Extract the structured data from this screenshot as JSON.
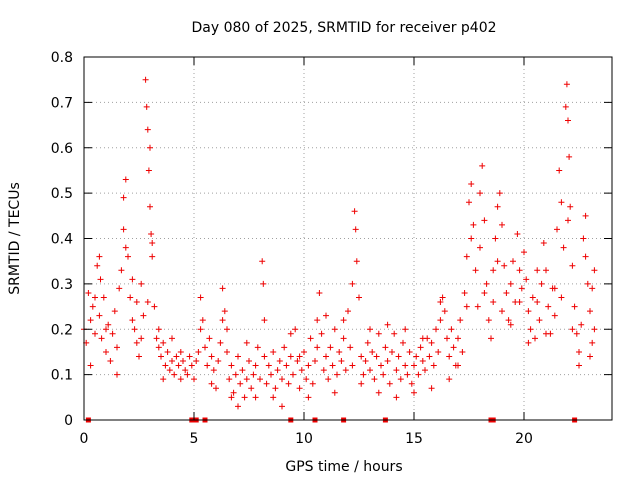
{
  "chart_data": {
    "type": "scatter",
    "title": "Day 080 of 2025, SRMTID for receiver p402",
    "xlabel": "GPS time / hours",
    "ylabel": "SRMTID / TECUs",
    "xlim": [
      0,
      24
    ],
    "ylim": [
      0,
      0.8
    ],
    "x_ticks": [
      0,
      5,
      10,
      15,
      20
    ],
    "x_tick_labels": [
      "0",
      "5",
      "10",
      "15",
      "20"
    ],
    "y_ticks": [
      0,
      0.1,
      0.2,
      0.3,
      0.4,
      0.5,
      0.6,
      0.7,
      0.8
    ],
    "y_tick_labels": [
      "0",
      "0.1",
      "0.2",
      "0.3",
      "0.4",
      "0.5",
      "0.6",
      "0.7",
      "0.8"
    ],
    "grid": true,
    "marker": "+",
    "color": "#ee0000",
    "zero_markers_x": [
      0.2,
      4.9,
      5.0,
      5.1,
      5.5,
      9.4,
      10.5,
      11.8,
      13.7,
      18.5,
      18.6,
      22.3
    ],
    "series": [
      {
        "name": "SRMTID",
        "points": [
          [
            0.0,
            0.2
          ],
          [
            0.1,
            0.17
          ],
          [
            0.2,
            0.28
          ],
          [
            0.3,
            0.22
          ],
          [
            0.4,
            0.25
          ],
          [
            0.5,
            0.19
          ],
          [
            0.6,
            0.34
          ],
          [
            0.7,
            0.23
          ],
          [
            0.8,
            0.18
          ],
          [
            0.9,
            0.27
          ],
          [
            1.0,
            0.15
          ],
          [
            1.1,
            0.21
          ],
          [
            1.2,
            0.13
          ],
          [
            1.3,
            0.19
          ],
          [
            1.4,
            0.24
          ],
          [
            1.5,
            0.16
          ],
          [
            1.6,
            0.29
          ],
          [
            1.7,
            0.33
          ],
          [
            1.8,
            0.49
          ],
          [
            1.9,
            0.53
          ],
          [
            2.0,
            0.36
          ],
          [
            2.1,
            0.27
          ],
          [
            2.2,
            0.31
          ],
          [
            2.3,
            0.2
          ],
          [
            2.4,
            0.26
          ],
          [
            2.5,
            0.14
          ],
          [
            2.6,
            0.18
          ],
          [
            2.7,
            0.23
          ],
          [
            2.8,
            0.75
          ],
          [
            2.85,
            0.69
          ],
          [
            2.9,
            0.64
          ],
          [
            2.95,
            0.55
          ],
          [
            3.0,
            0.47
          ],
          [
            3.05,
            0.41
          ],
          [
            3.1,
            0.36
          ],
          [
            3.2,
            0.25
          ],
          [
            3.3,
            0.18
          ],
          [
            3.4,
            0.16
          ],
          [
            3.5,
            0.14
          ],
          [
            3.6,
            0.17
          ],
          [
            3.7,
            0.12
          ],
          [
            3.8,
            0.15
          ],
          [
            3.9,
            0.11
          ],
          [
            4.0,
            0.13
          ],
          [
            4.1,
            0.1
          ],
          [
            4.2,
            0.14
          ],
          [
            4.3,
            0.12
          ],
          [
            4.4,
            0.09
          ],
          [
            4.5,
            0.13
          ],
          [
            4.6,
            0.11
          ],
          [
            4.7,
            0.1
          ],
          [
            4.8,
            0.14
          ],
          [
            4.9,
            0.12
          ],
          [
            5.0,
            0.09
          ],
          [
            5.1,
            0.13
          ],
          [
            5.2,
            0.15
          ],
          [
            5.3,
            0.27
          ],
          [
            5.4,
            0.22
          ],
          [
            5.5,
            0.16
          ],
          [
            5.6,
            0.12
          ],
          [
            5.7,
            0.18
          ],
          [
            5.8,
            0.08
          ],
          [
            5.9,
            0.11
          ],
          [
            6.0,
            0.07
          ],
          [
            6.1,
            0.13
          ],
          [
            6.2,
            0.17
          ],
          [
            6.3,
            0.29
          ],
          [
            6.4,
            0.24
          ],
          [
            6.5,
            0.15
          ],
          [
            6.6,
            0.09
          ],
          [
            6.7,
            0.12
          ],
          [
            6.8,
            0.06
          ],
          [
            6.9,
            0.1
          ],
          [
            7.0,
            0.14
          ],
          [
            7.1,
            0.08
          ],
          [
            7.2,
            0.11
          ],
          [
            7.3,
            0.05
          ],
          [
            7.4,
            0.09
          ],
          [
            7.5,
            0.13
          ],
          [
            7.6,
            0.07
          ],
          [
            7.7,
            0.1
          ],
          [
            7.8,
            0.12
          ],
          [
            7.9,
            0.16
          ],
          [
            8.0,
            0.09
          ],
          [
            8.1,
            0.35
          ],
          [
            8.15,
            0.3
          ],
          [
            8.2,
            0.14
          ],
          [
            8.3,
            0.08
          ],
          [
            8.4,
            0.12
          ],
          [
            8.5,
            0.1
          ],
          [
            8.6,
            0.15
          ],
          [
            8.7,
            0.07
          ],
          [
            8.8,
            0.11
          ],
          [
            8.9,
            0.13
          ],
          [
            9.0,
            0.09
          ],
          [
            9.1,
            0.16
          ],
          [
            9.2,
            0.12
          ],
          [
            9.3,
            0.08
          ],
          [
            9.4,
            0.14
          ],
          [
            9.5,
            0.1
          ],
          [
            9.6,
            0.2
          ],
          [
            9.7,
            0.13
          ],
          [
            9.8,
            0.07
          ],
          [
            9.9,
            0.11
          ],
          [
            10.0,
            0.15
          ],
          [
            10.1,
            0.09
          ],
          [
            10.2,
            0.12
          ],
          [
            10.3,
            0.18
          ],
          [
            10.4,
            0.08
          ],
          [
            10.5,
            0.13
          ],
          [
            10.6,
            0.22
          ],
          [
            10.7,
            0.28
          ],
          [
            10.8,
            0.19
          ],
          [
            10.9,
            0.11
          ],
          [
            11.0,
            0.14
          ],
          [
            11.1,
            0.09
          ],
          [
            11.2,
            0.16
          ],
          [
            11.3,
            0.12
          ],
          [
            11.4,
            0.2
          ],
          [
            11.5,
            0.1
          ],
          [
            11.6,
            0.15
          ],
          [
            11.7,
            0.13
          ],
          [
            11.8,
            0.18
          ],
          [
            11.9,
            0.11
          ],
          [
            12.0,
            0.24
          ],
          [
            12.1,
            0.16
          ],
          [
            12.2,
            0.12
          ],
          [
            12.3,
            0.46
          ],
          [
            12.35,
            0.42
          ],
          [
            12.4,
            0.35
          ],
          [
            12.5,
            0.27
          ],
          [
            12.6,
            0.14
          ],
          [
            12.7,
            0.1
          ],
          [
            12.8,
            0.13
          ],
          [
            12.9,
            0.17
          ],
          [
            13.0,
            0.11
          ],
          [
            13.1,
            0.15
          ],
          [
            13.2,
            0.09
          ],
          [
            13.3,
            0.14
          ],
          [
            13.4,
            0.19
          ],
          [
            13.5,
            0.12
          ],
          [
            13.6,
            0.1
          ],
          [
            13.7,
            0.16
          ],
          [
            13.8,
            0.13
          ],
          [
            13.9,
            0.08
          ],
          [
            14.0,
            0.15
          ],
          [
            14.1,
            0.19
          ],
          [
            14.2,
            0.11
          ],
          [
            14.3,
            0.14
          ],
          [
            14.4,
            0.09
          ],
          [
            14.5,
            0.17
          ],
          [
            14.6,
            0.12
          ],
          [
            14.7,
            0.1
          ],
          [
            14.8,
            0.15
          ],
          [
            14.9,
            0.08
          ],
          [
            15.0,
            0.12
          ],
          [
            15.1,
            0.14
          ],
          [
            15.2,
            0.1
          ],
          [
            15.3,
            0.16
          ],
          [
            15.4,
            0.13
          ],
          [
            15.5,
            0.11
          ],
          [
            15.6,
            0.18
          ],
          [
            15.7,
            0.14
          ],
          [
            15.8,
            0.17
          ],
          [
            15.9,
            0.12
          ],
          [
            16.0,
            0.2
          ],
          [
            16.1,
            0.15
          ],
          [
            16.2,
            0.22
          ],
          [
            16.3,
            0.27
          ],
          [
            16.4,
            0.24
          ],
          [
            16.5,
            0.18
          ],
          [
            16.6,
            0.14
          ],
          [
            16.7,
            0.2
          ],
          [
            16.8,
            0.16
          ],
          [
            16.9,
            0.12
          ],
          [
            17.0,
            0.18
          ],
          [
            17.1,
            0.22
          ],
          [
            17.2,
            0.15
          ],
          [
            17.3,
            0.28
          ],
          [
            17.4,
            0.36
          ],
          [
            17.5,
            0.48
          ],
          [
            17.6,
            0.52
          ],
          [
            17.7,
            0.43
          ],
          [
            17.8,
            0.33
          ],
          [
            17.9,
            0.25
          ],
          [
            18.0,
            0.5
          ],
          [
            18.1,
            0.56
          ],
          [
            18.2,
            0.44
          ],
          [
            18.3,
            0.3
          ],
          [
            18.4,
            0.22
          ],
          [
            18.5,
            0.18
          ],
          [
            18.6,
            0.26
          ],
          [
            18.7,
            0.4
          ],
          [
            18.8,
            0.47
          ],
          [
            18.9,
            0.5
          ],
          [
            19.0,
            0.43
          ],
          [
            19.1,
            0.34
          ],
          [
            19.2,
            0.28
          ],
          [
            19.3,
            0.22
          ],
          [
            19.4,
            0.3
          ],
          [
            19.5,
            0.35
          ],
          [
            19.6,
            0.26
          ],
          [
            19.7,
            0.41
          ],
          [
            19.8,
            0.33
          ],
          [
            19.9,
            0.29
          ],
          [
            20.0,
            0.37
          ],
          [
            20.1,
            0.31
          ],
          [
            20.2,
            0.24
          ],
          [
            20.3,
            0.2
          ],
          [
            20.4,
            0.27
          ],
          [
            20.5,
            0.18
          ],
          [
            20.6,
            0.26
          ],
          [
            20.7,
            0.22
          ],
          [
            20.8,
            0.3
          ],
          [
            20.9,
            0.39
          ],
          [
            21.0,
            0.33
          ],
          [
            21.1,
            0.25
          ],
          [
            21.2,
            0.19
          ],
          [
            21.3,
            0.29
          ],
          [
            21.4,
            0.23
          ],
          [
            21.5,
            0.42
          ],
          [
            21.6,
            0.55
          ],
          [
            21.7,
            0.48
          ],
          [
            21.8,
            0.38
          ],
          [
            21.9,
            0.69
          ],
          [
            21.95,
            0.74
          ],
          [
            22.0,
            0.66
          ],
          [
            22.05,
            0.58
          ],
          [
            22.1,
            0.47
          ],
          [
            22.2,
            0.34
          ],
          [
            22.3,
            0.25
          ],
          [
            22.4,
            0.19
          ],
          [
            22.5,
            0.15
          ],
          [
            22.6,
            0.21
          ],
          [
            22.7,
            0.4
          ],
          [
            22.8,
            0.36
          ],
          [
            22.9,
            0.3
          ],
          [
            23.0,
            0.24
          ],
          [
            23.1,
            0.17
          ],
          [
            23.2,
            0.33
          ],
          [
            3.0,
            0.6
          ],
          [
            3.1,
            0.39
          ],
          [
            2.9,
            0.26
          ],
          [
            2.6,
            0.3
          ],
          [
            1.8,
            0.42
          ],
          [
            1.9,
            0.38
          ],
          [
            0.7,
            0.36
          ],
          [
            0.75,
            0.31
          ],
          [
            0.5,
            0.27
          ],
          [
            0.3,
            0.12
          ],
          [
            1.0,
            0.2
          ],
          [
            1.5,
            0.1
          ],
          [
            2.2,
            0.22
          ],
          [
            2.4,
            0.17
          ],
          [
            3.4,
            0.2
          ],
          [
            3.6,
            0.09
          ],
          [
            4.0,
            0.18
          ],
          [
            4.4,
            0.15
          ],
          [
            5.3,
            0.2
          ],
          [
            5.8,
            0.14
          ],
          [
            6.3,
            0.22
          ],
          [
            6.5,
            0.2
          ],
          [
            6.7,
            0.05
          ],
          [
            7.0,
            0.03
          ],
          [
            7.4,
            0.17
          ],
          [
            7.8,
            0.05
          ],
          [
            8.2,
            0.22
          ],
          [
            8.6,
            0.05
          ],
          [
            9.0,
            0.03
          ],
          [
            9.4,
            0.19
          ],
          [
            9.8,
            0.14
          ],
          [
            10.2,
            0.05
          ],
          [
            10.6,
            0.16
          ],
          [
            11.0,
            0.23
          ],
          [
            11.4,
            0.06
          ],
          [
            11.8,
            0.22
          ],
          [
            12.2,
            0.3
          ],
          [
            12.6,
            0.08
          ],
          [
            13.0,
            0.2
          ],
          [
            13.4,
            0.06
          ],
          [
            13.8,
            0.21
          ],
          [
            14.2,
            0.05
          ],
          [
            14.6,
            0.2
          ],
          [
            15.0,
            0.06
          ],
          [
            15.4,
            0.18
          ],
          [
            15.8,
            0.07
          ],
          [
            16.2,
            0.26
          ],
          [
            16.6,
            0.09
          ],
          [
            17.0,
            0.12
          ],
          [
            17.4,
            0.25
          ],
          [
            17.6,
            0.4
          ],
          [
            18.0,
            0.38
          ],
          [
            18.2,
            0.28
          ],
          [
            18.6,
            0.33
          ],
          [
            18.8,
            0.35
          ],
          [
            19.0,
            0.24
          ],
          [
            19.4,
            0.21
          ],
          [
            19.8,
            0.26
          ],
          [
            20.2,
            0.17
          ],
          [
            20.6,
            0.33
          ],
          [
            21.0,
            0.19
          ],
          [
            21.4,
            0.29
          ],
          [
            21.7,
            0.27
          ],
          [
            22.0,
            0.44
          ],
          [
            22.2,
            0.2
          ],
          [
            22.5,
            0.12
          ],
          [
            22.8,
            0.45
          ],
          [
            23.0,
            0.14
          ],
          [
            23.1,
            0.29
          ],
          [
            23.2,
            0.2
          ]
        ]
      }
    ]
  }
}
